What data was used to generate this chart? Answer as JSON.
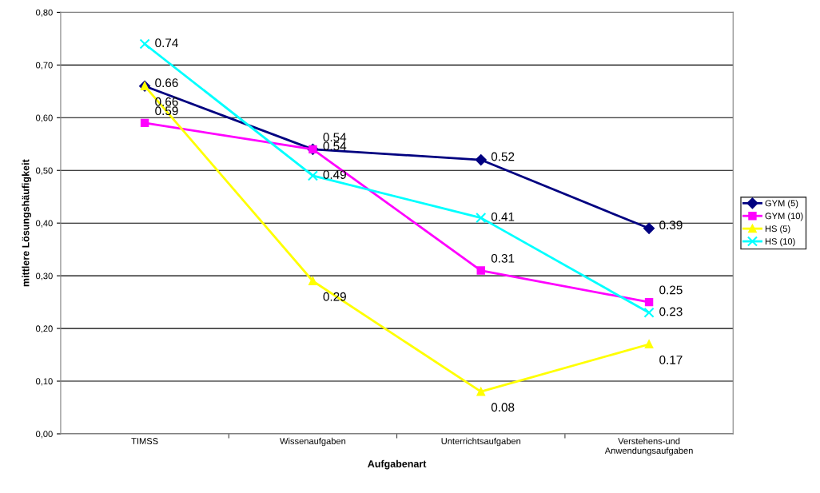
{
  "chart_data": {
    "type": "line",
    "xlabel": "Aufgabenart",
    "ylabel": "mittlere Lösungshäufigkeit",
    "categories": [
      "TIMSS",
      "Wissenaufgaben",
      "Unterrichtsaufgaben",
      "Verstehens-und\nAnwendungsaufgaben"
    ],
    "series": [
      {
        "name": "GYM (5)",
        "color": "#000080",
        "marker": "diamond",
        "values": [
          0.66,
          0.54,
          0.52,
          0.39
        ]
      },
      {
        "name": "GYM (10)",
        "color": "#ff00ff",
        "marker": "square",
        "values": [
          0.59,
          0.54,
          0.31,
          0.25
        ]
      },
      {
        "name": "HS (5)",
        "color": "#ffff00",
        "marker": "triangle",
        "values": [
          0.66,
          0.29,
          0.08,
          0.17
        ]
      },
      {
        "name": "HS (10)",
        "color": "#00ffff",
        "marker": "cross",
        "values": [
          0.74,
          0.49,
          0.41,
          0.23
        ]
      }
    ],
    "ylim": [
      0,
      0.8
    ],
    "yticks": [
      {
        "value": 0,
        "label": "0,00"
      },
      {
        "value": 0.1,
        "label": "0,10"
      },
      {
        "value": 0.2,
        "label": "0,20"
      },
      {
        "value": 0.3,
        "label": "0,30"
      },
      {
        "value": 0.4,
        "label": "0,40"
      },
      {
        "value": 0.5,
        "label": "0,50"
      },
      {
        "value": 0.6,
        "label": "0,60"
      },
      {
        "value": 0.7,
        "label": "0,70"
      },
      {
        "value": 0.8,
        "label": "0,80"
      }
    ],
    "grid": "y",
    "legend": "right",
    "data_labels": true,
    "line_style": "solid"
  }
}
